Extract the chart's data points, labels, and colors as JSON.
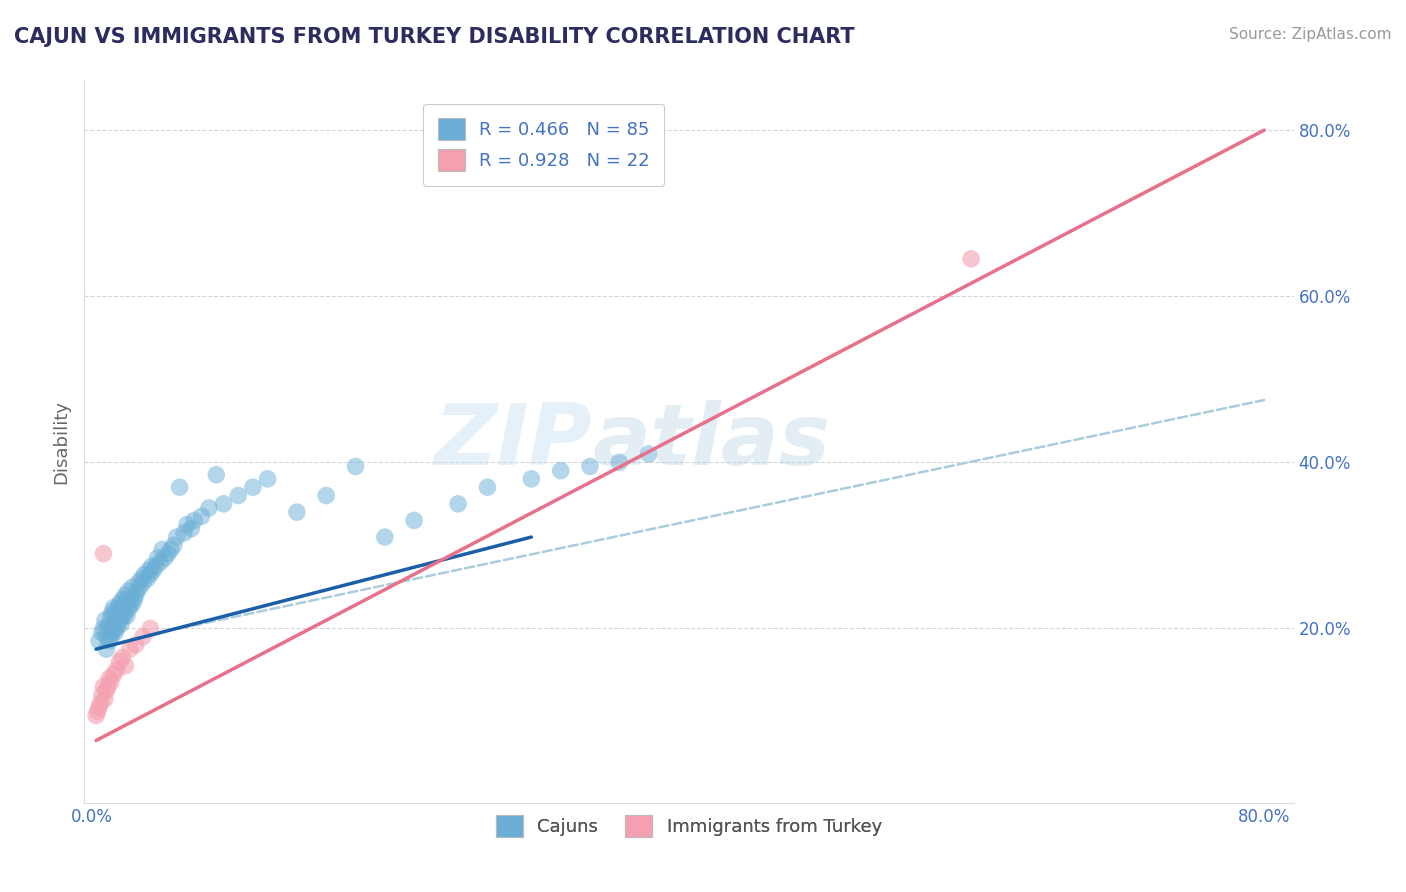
{
  "title": "CAJUN VS IMMIGRANTS FROM TURKEY DISABILITY CORRELATION CHART",
  "source": "Source: ZipAtlas.com",
  "ylabel": "Disability",
  "xlim": [
    -0.005,
    0.82
  ],
  "ylim": [
    -0.01,
    0.86
  ],
  "x_ticks": [
    0.0,
    0.2,
    0.4,
    0.6,
    0.8
  ],
  "x_tick_labels": [
    "0.0%",
    "",
    "",
    "",
    "80.0%"
  ],
  "y_ticks": [
    0.2,
    0.4,
    0.6,
    0.8
  ],
  "y_tick_labels": [
    "20.0%",
    "40.0%",
    "60.0%",
    "80.0%"
  ],
  "cajun_color": "#6aaed6",
  "turkey_color": "#f4a0b0",
  "cajun_line_color": "#1a5fa8",
  "turkey_line_color": "#e8708a",
  "dash_line_color": "#aaccdd",
  "legend_cajun_label": "R = 0.466   N = 85",
  "legend_turkey_label": "R = 0.928   N = 22",
  "watermark_zip": "ZIP",
  "watermark_atlas": "atlas",
  "title_color": "#2c2c5e",
  "tick_color": "#4472c4",
  "legend_color": "#4472c4",
  "background_color": "#ffffff",
  "grid_color": "#cccccc",
  "cajun_x": [
    0.005,
    0.007,
    0.008,
    0.009,
    0.01,
    0.01,
    0.011,
    0.012,
    0.012,
    0.013,
    0.013,
    0.014,
    0.014,
    0.015,
    0.015,
    0.016,
    0.016,
    0.017,
    0.017,
    0.018,
    0.018,
    0.019,
    0.019,
    0.02,
    0.02,
    0.021,
    0.021,
    0.022,
    0.022,
    0.023,
    0.023,
    0.024,
    0.024,
    0.025,
    0.025,
    0.026,
    0.027,
    0.028,
    0.028,
    0.029,
    0.03,
    0.031,
    0.032,
    0.033,
    0.034,
    0.035,
    0.036,
    0.038,
    0.039,
    0.04,
    0.041,
    0.042,
    0.044,
    0.045,
    0.047,
    0.048,
    0.05,
    0.052,
    0.054,
    0.056,
    0.058,
    0.06,
    0.063,
    0.065,
    0.068,
    0.07,
    0.075,
    0.08,
    0.085,
    0.09,
    0.1,
    0.11,
    0.12,
    0.14,
    0.16,
    0.18,
    0.2,
    0.22,
    0.25,
    0.27,
    0.3,
    0.32,
    0.34,
    0.36,
    0.38
  ],
  "cajun_y": [
    0.185,
    0.195,
    0.2,
    0.21,
    0.175,
    0.19,
    0.2,
    0.185,
    0.205,
    0.19,
    0.215,
    0.195,
    0.22,
    0.2,
    0.225,
    0.195,
    0.215,
    0.2,
    0.22,
    0.205,
    0.225,
    0.21,
    0.23,
    0.205,
    0.22,
    0.215,
    0.235,
    0.215,
    0.23,
    0.22,
    0.24,
    0.215,
    0.235,
    0.225,
    0.245,
    0.225,
    0.235,
    0.23,
    0.25,
    0.235,
    0.24,
    0.245,
    0.255,
    0.25,
    0.26,
    0.255,
    0.265,
    0.26,
    0.27,
    0.265,
    0.275,
    0.27,
    0.275,
    0.285,
    0.28,
    0.295,
    0.285,
    0.29,
    0.295,
    0.3,
    0.31,
    0.37,
    0.315,
    0.325,
    0.32,
    0.33,
    0.335,
    0.345,
    0.385,
    0.35,
    0.36,
    0.37,
    0.38,
    0.34,
    0.36,
    0.395,
    0.31,
    0.33,
    0.35,
    0.37,
    0.38,
    0.39,
    0.395,
    0.4,
    0.41
  ],
  "turkey_x": [
    0.003,
    0.004,
    0.005,
    0.006,
    0.007,
    0.008,
    0.009,
    0.01,
    0.011,
    0.012,
    0.013,
    0.015,
    0.017,
    0.019,
    0.021,
    0.023,
    0.026,
    0.03,
    0.035,
    0.04,
    0.6,
    0.008
  ],
  "turkey_y": [
    0.095,
    0.1,
    0.105,
    0.11,
    0.12,
    0.13,
    0.115,
    0.125,
    0.13,
    0.14,
    0.135,
    0.145,
    0.15,
    0.16,
    0.165,
    0.155,
    0.175,
    0.18,
    0.19,
    0.2,
    0.645,
    0.29
  ],
  "cajun_line_x": [
    0.003,
    0.3
  ],
  "cajun_line_y": [
    0.175,
    0.31
  ],
  "turkey_line_x": [
    0.003,
    0.8
  ],
  "turkey_line_y": [
    0.065,
    0.8
  ],
  "dash_line_x": [
    0.06,
    0.8
  ],
  "dash_line_y": [
    0.2,
    0.475
  ]
}
